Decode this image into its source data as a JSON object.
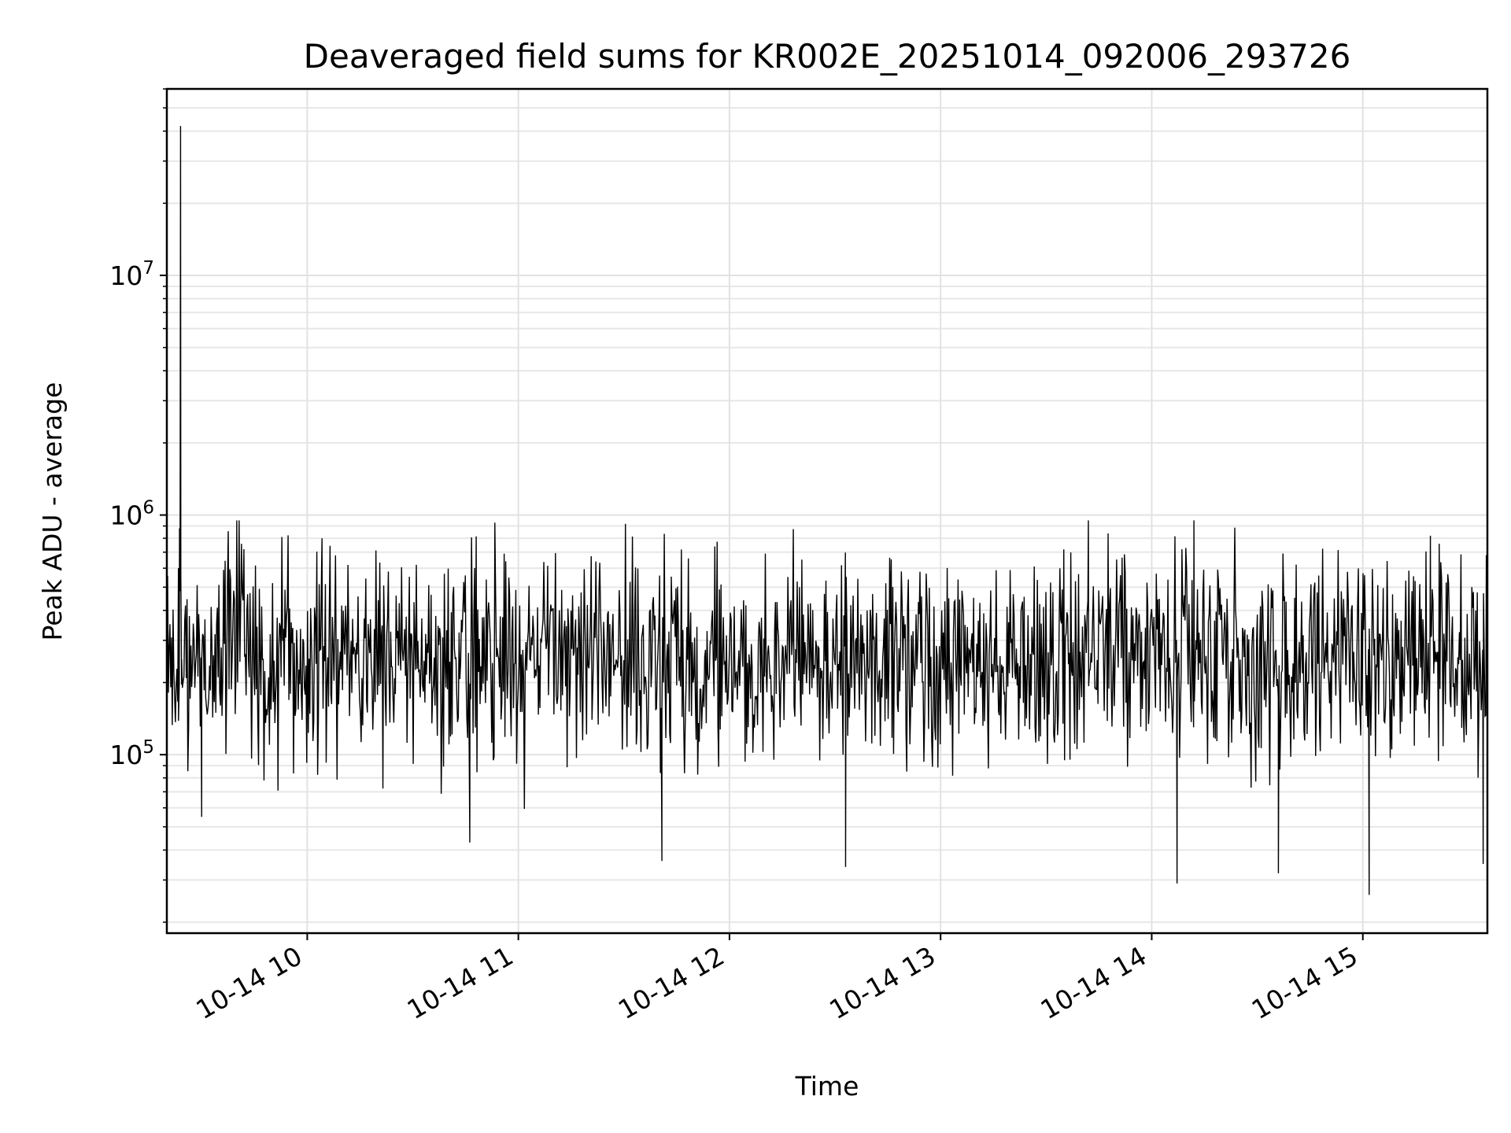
{
  "chart_data": {
    "type": "line",
    "title": "Deaveraged field sums for KR002E_20251014_092006_293726",
    "xlabel": "Time",
    "ylabel": "Peak ADU - average",
    "y_scale": "log",
    "x_unit": "hours since 2025-10-14 00:00",
    "xlim": [
      9.335,
      15.59
    ],
    "ylim": [
      18000,
      60000000
    ],
    "x_ticks": [
      {
        "value": 10,
        "label": "10-14 10"
      },
      {
        "value": 11,
        "label": "10-14 11"
      },
      {
        "value": 12,
        "label": "10-14 12"
      },
      {
        "value": 13,
        "label": "10-14 13"
      },
      {
        "value": 14,
        "label": "10-14 14"
      },
      {
        "value": 15,
        "label": "10-14 15"
      }
    ],
    "y_ticks": [
      {
        "value": 100000,
        "base": "10",
        "exp": "5"
      },
      {
        "value": 1000000,
        "base": "10",
        "exp": "6"
      },
      {
        "value": 10000000,
        "base": "10",
        "exp": "7"
      }
    ],
    "grid": true,
    "line_color": "#000000",
    "series": [
      {
        "name": "deaveraged field sum",
        "sampling": "~1700 samples, one every ~13 s",
        "baseline": 240000,
        "typical_range": [
          30000,
          950000
        ],
        "anchor_points": [
          {
            "x": 9.335,
            "y": 250000
          },
          {
            "x": 9.39,
            "y": 600000
          },
          {
            "x": 9.395,
            "y": 880000
          },
          {
            "x": 9.4,
            "y": 42000000
          },
          {
            "x": 9.405,
            "y": 250000
          },
          {
            "x": 9.5,
            "y": 55000
          },
          {
            "x": 9.7,
            "y": 720000
          },
          {
            "x": 10.07,
            "y": 800000
          },
          {
            "x": 10.77,
            "y": 43000
          },
          {
            "x": 11.68,
            "y": 36000
          },
          {
            "x": 12.55,
            "y": 34000
          },
          {
            "x": 13.7,
            "y": 950000
          },
          {
            "x": 14.12,
            "y": 29000
          },
          {
            "x": 14.2,
            "y": 950000
          },
          {
            "x": 14.6,
            "y": 32000
          },
          {
            "x": 15.03,
            "y": 26000
          },
          {
            "x": 15.32,
            "y": 820000
          },
          {
            "x": 15.57,
            "y": 35000
          },
          {
            "x": 15.585,
            "y": 680000
          }
        ]
      }
    ]
  }
}
